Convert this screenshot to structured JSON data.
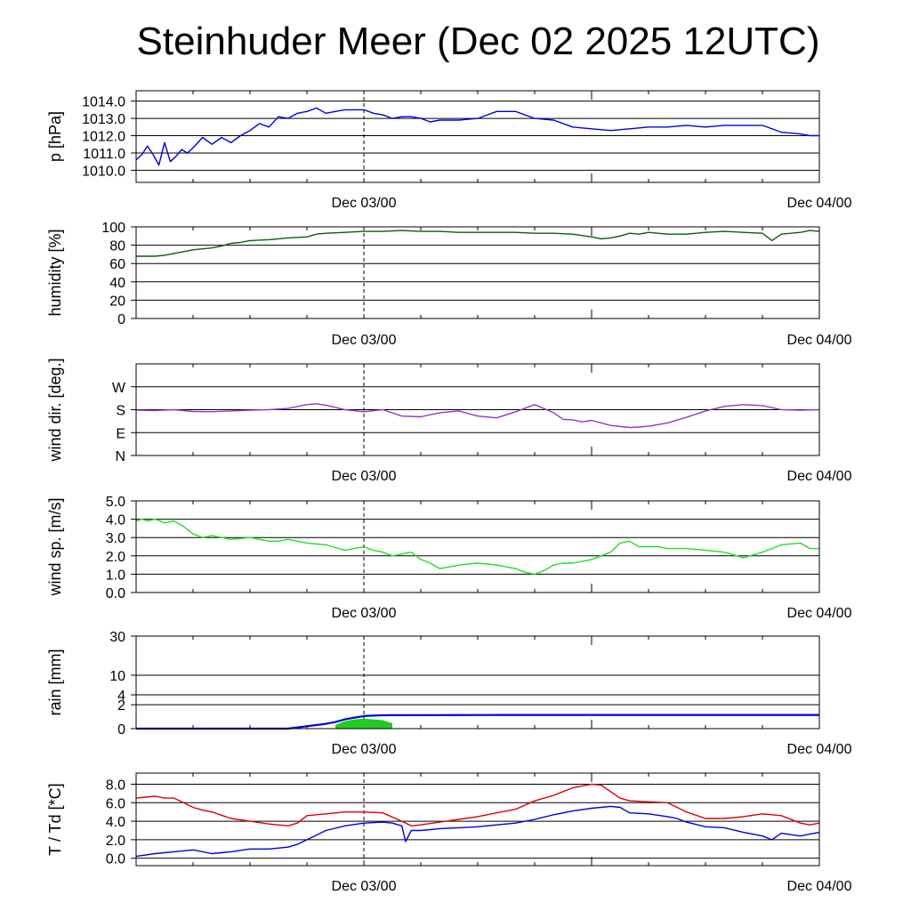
{
  "title": "Steinhuder Meer (Dec 02 2025 12UTC)",
  "chart_data": [
    {
      "id": "pressure",
      "type": "line",
      "ylabel": "p [hPa]",
      "ylim": [
        1009.3,
        1014.6
      ],
      "yticks": [
        1010.0,
        1011.0,
        1012.0,
        1013.0,
        1014.0
      ],
      "ytick_labels": [
        "1010.0",
        "1011.0",
        "1012.0",
        "1013.0",
        "1014.0"
      ],
      "xlim": [
        0,
        36
      ],
      "xtick_labels": [
        {
          "x": 12,
          "label": "Dec 03/00"
        },
        {
          "x": 36,
          "label": "Dec 04/00"
        }
      ],
      "series": [
        {
          "name": "pressure",
          "color": "#0000dd",
          "x": [
            0,
            0.3,
            0.6,
            0.9,
            1.2,
            1.5,
            1.8,
            2.1,
            2.4,
            2.7,
            3.0,
            3.5,
            4,
            4.5,
            5,
            5.5,
            6,
            6.5,
            7,
            7.5,
            8,
            8.5,
            9,
            9.5,
            10,
            10.5,
            11,
            11.5,
            12,
            12.5,
            13,
            13.5,
            14,
            14.5,
            15,
            15.5,
            16,
            17,
            18,
            19,
            20,
            21,
            22,
            23,
            24,
            25,
            26,
            27,
            28,
            29,
            30,
            31,
            32,
            33,
            34,
            35,
            35.5,
            36
          ],
          "y": [
            1010.6,
            1010.9,
            1011.4,
            1010.9,
            1010.3,
            1011.6,
            1010.5,
            1010.8,
            1011.2,
            1011.0,
            1011.3,
            1011.9,
            1011.5,
            1011.9,
            1011.6,
            1012.0,
            1012.3,
            1012.7,
            1012.5,
            1013.1,
            1013.0,
            1013.3,
            1013.4,
            1013.6,
            1013.3,
            1013.4,
            1013.5,
            1013.5,
            1013.5,
            1013.3,
            1013.2,
            1013.0,
            1013.1,
            1013.1,
            1013.0,
            1012.8,
            1012.9,
            1012.9,
            1013.0,
            1013.4,
            1013.4,
            1013.0,
            1012.9,
            1012.5,
            1012.4,
            1012.3,
            1012.4,
            1012.5,
            1012.5,
            1012.6,
            1012.5,
            1012.6,
            1012.6,
            1012.6,
            1012.2,
            1012.1,
            1012.0,
            1012.0
          ]
        }
      ]
    },
    {
      "id": "humidity",
      "type": "line",
      "ylabel": "humidity [%]",
      "ylim": [
        0,
        100
      ],
      "yticks": [
        0,
        20,
        40,
        60,
        80,
        100
      ],
      "ytick_labels": [
        "0",
        "20",
        "40",
        "60",
        "80",
        "100"
      ],
      "xlim": [
        0,
        36
      ],
      "xtick_labels": [
        {
          "x": 12,
          "label": "Dec 03/00"
        },
        {
          "x": 36,
          "label": "Dec 04/00"
        }
      ],
      "series": [
        {
          "name": "humidity",
          "color": "#006400",
          "x": [
            0,
            1,
            1.5,
            2,
            2.5,
            3,
            3.5,
            4,
            4.5,
            5,
            5.5,
            6,
            7,
            8,
            9,
            9.5,
            10,
            11,
            12,
            13,
            14,
            15,
            16,
            17,
            18,
            19,
            20,
            21,
            22,
            23,
            24,
            24.5,
            25,
            25.5,
            26,
            26.5,
            27,
            27.5,
            28,
            29,
            30,
            31,
            32,
            33,
            33.5,
            34,
            34.5,
            35,
            35.5,
            36
          ],
          "y": [
            68,
            68,
            69,
            71,
            73,
            75,
            76,
            77,
            79,
            82,
            83,
            85,
            86,
            88,
            89,
            92,
            93,
            94,
            95,
            95,
            96,
            95,
            95,
            94,
            94,
            94,
            94,
            93,
            93,
            92,
            89,
            87,
            88,
            90,
            93,
            92,
            94,
            93,
            92,
            92,
            94,
            95,
            94,
            93,
            85,
            92,
            93,
            94,
            96,
            95
          ]
        }
      ]
    },
    {
      "id": "wind_direction",
      "type": "line",
      "ylabel": "wind dir. [deg.]",
      "ylim": [
        0,
        360
      ],
      "yticks": [
        0,
        90,
        180,
        270
      ],
      "ytick_labels": [
        "N",
        "E",
        "S",
        "W"
      ],
      "xlim": [
        0,
        36
      ],
      "xtick_labels": [
        {
          "x": 12,
          "label": "Dec 03/00"
        },
        {
          "x": 36,
          "label": "Dec 04/00"
        }
      ],
      "series": [
        {
          "name": "wind direction",
          "color": "#9932cc",
          "x": [
            0,
            1,
            2,
            3,
            4,
            5,
            6,
            7,
            8,
            9,
            9.5,
            10,
            11,
            12,
            13,
            14,
            15,
            16,
            17,
            18,
            19,
            20,
            21,
            22,
            22.5,
            23,
            23.5,
            24,
            25,
            26,
            26.5,
            27,
            28,
            29,
            30,
            31,
            32,
            33,
            34,
            35,
            36
          ],
          "y": [
            178,
            177,
            180,
            173,
            172,
            175,
            178,
            180,
            185,
            200,
            203,
            198,
            180,
            172,
            180,
            155,
            152,
            168,
            175,
            155,
            148,
            172,
            200,
            168,
            142,
            140,
            132,
            138,
            118,
            110,
            112,
            115,
            128,
            150,
            175,
            193,
            200,
            196,
            180,
            178,
            180
          ]
        }
      ]
    },
    {
      "id": "wind_speed",
      "type": "line",
      "ylabel": "wind sp. [m/s]",
      "ylim": [
        0,
        5
      ],
      "yticks": [
        0,
        1,
        2,
        3,
        4,
        5
      ],
      "ytick_labels": [
        "0.0",
        "1.0",
        "2.0",
        "3.0",
        "4.0",
        "5.0"
      ],
      "xlim": [
        0,
        36
      ],
      "xtick_labels": [
        {
          "x": 12,
          "label": "Dec 03/00"
        },
        {
          "x": 36,
          "label": "Dec 04/00"
        }
      ],
      "series": [
        {
          "name": "wind speed",
          "color": "#22dd22",
          "x": [
            0,
            0.3,
            0.6,
            1,
            1.5,
            2,
            2.5,
            3,
            3.5,
            4,
            5,
            6,
            7,
            7.5,
            8,
            9,
            10,
            11,
            11.5,
            12,
            12.5,
            13,
            13.5,
            14,
            14.5,
            15,
            15.5,
            16,
            16.5,
            17,
            18,
            19,
            20,
            20.5,
            21,
            21.5,
            22,
            22.5,
            23,
            24,
            24.5,
            25,
            25.5,
            26,
            26.5,
            27,
            27.5,
            28,
            29,
            30,
            31,
            32,
            33,
            33.5,
            34,
            35,
            35.5,
            36
          ],
          "y": [
            3.9,
            4.0,
            3.9,
            4.0,
            3.8,
            3.9,
            3.6,
            3.2,
            3.0,
            3.1,
            2.9,
            3.0,
            2.8,
            2.8,
            2.9,
            2.7,
            2.6,
            2.3,
            2.4,
            2.5,
            2.3,
            2.2,
            2.0,
            2.1,
            2.2,
            1.8,
            1.6,
            1.3,
            1.4,
            1.5,
            1.6,
            1.5,
            1.3,
            1.1,
            1.0,
            1.2,
            1.5,
            1.6,
            1.6,
            1.8,
            2.0,
            2.2,
            2.7,
            2.8,
            2.5,
            2.5,
            2.5,
            2.4,
            2.4,
            2.3,
            2.2,
            1.9,
            2.2,
            2.4,
            2.6,
            2.7,
            2.4,
            2.4
          ]
        }
      ]
    },
    {
      "id": "rain",
      "type": "area",
      "ylabel": "rain [mm]",
      "ylim": [
        0,
        30
      ],
      "yticks": [
        0,
        2,
        4,
        10,
        30
      ],
      "ytick_labels": [
        "0",
        "2",
        "4",
        "10",
        "30"
      ],
      "xlim": [
        0,
        36
      ],
      "xtick_labels": [
        {
          "x": 12,
          "label": "Dec 03/00"
        },
        {
          "x": 36,
          "label": "Dec 04/00"
        }
      ],
      "series": [
        {
          "name": "hourly rain",
          "color": "#22cc22",
          "x": [
            10.5,
            11,
            11.5,
            12,
            12.5,
            13,
            13.5
          ],
          "y": [
            0.05,
            0.2,
            0.3,
            0.35,
            0.3,
            0.25,
            0.1
          ]
        },
        {
          "name": "accumulated rain",
          "color": "#0000dd",
          "x": [
            0,
            8,
            9,
            10,
            10.5,
            11,
            11.5,
            12,
            12.5,
            13,
            13.5,
            14,
            16,
            18,
            20,
            24,
            30,
            36
          ],
          "y": [
            0,
            0,
            0.02,
            0.08,
            0.15,
            0.3,
            0.42,
            0.55,
            0.6,
            0.62,
            0.63,
            0.63,
            0.64,
            0.65,
            0.66,
            0.66,
            0.66,
            0.66
          ]
        }
      ]
    },
    {
      "id": "temperature",
      "type": "line",
      "ylabel": "T / Td [*C]",
      "ylim": [
        -0.8,
        9.2
      ],
      "yticks": [
        0,
        2,
        4,
        6,
        8
      ],
      "ytick_labels": [
        "0.0",
        "2.0",
        "4.0",
        "6.0",
        "8.0"
      ],
      "xlim": [
        0,
        36
      ],
      "xtick_labels": [
        {
          "x": 12,
          "label": "Dec 03/00"
        },
        {
          "x": 36,
          "label": "Dec 04/00"
        }
      ],
      "series": [
        {
          "name": "temperature",
          "color": "#dd0000",
          "x": [
            0,
            1,
            1.5,
            2,
            2.5,
            3,
            3.5,
            4,
            5,
            6,
            7,
            8,
            8.5,
            9,
            10,
            11,
            12,
            13,
            14,
            14.5,
            15,
            16,
            17,
            18,
            19,
            20,
            21,
            22,
            23,
            24,
            24.5,
            25,
            25.5,
            26,
            27,
            28,
            29,
            30,
            31,
            32,
            33,
            34,
            35,
            35.5,
            36
          ],
          "y": [
            6.5,
            6.7,
            6.5,
            6.5,
            6.0,
            5.5,
            5.2,
            5.0,
            4.3,
            4.0,
            3.7,
            3.5,
            3.8,
            4.6,
            4.8,
            5.0,
            5.0,
            4.9,
            4.0,
            3.5,
            3.6,
            3.9,
            4.2,
            4.5,
            4.9,
            5.3,
            6.2,
            6.8,
            7.6,
            8.0,
            7.9,
            7.2,
            6.5,
            6.2,
            6.1,
            6.0,
            5.0,
            4.3,
            4.3,
            4.5,
            4.8,
            4.6,
            3.8,
            3.6,
            3.8
          ]
        },
        {
          "name": "dew point",
          "color": "#0000dd",
          "x": [
            0,
            1,
            2,
            3,
            4,
            5,
            6,
            7,
            8,
            8.5,
            9,
            9.5,
            10,
            11,
            12,
            13,
            13.5,
            14,
            14.2,
            14.5,
            15,
            16,
            17,
            18,
            19,
            20,
            21,
            22,
            23,
            24,
            25,
            25.5,
            26,
            27,
            28,
            28.5,
            29,
            30,
            31,
            32,
            33,
            33.5,
            34,
            35,
            35.5,
            36
          ],
          "y": [
            0.2,
            0.5,
            0.7,
            0.9,
            0.5,
            0.7,
            1.0,
            1.0,
            1.2,
            1.5,
            2.0,
            2.5,
            3.0,
            3.5,
            3.8,
            3.9,
            3.8,
            3.5,
            1.8,
            3.0,
            3.0,
            3.2,
            3.3,
            3.4,
            3.6,
            3.8,
            4.2,
            4.7,
            5.1,
            5.4,
            5.6,
            5.5,
            4.9,
            4.8,
            4.5,
            4.3,
            3.9,
            3.4,
            3.3,
            2.8,
            2.4,
            2.0,
            2.7,
            2.4,
            2.6,
            2.8
          ]
        }
      ]
    }
  ]
}
